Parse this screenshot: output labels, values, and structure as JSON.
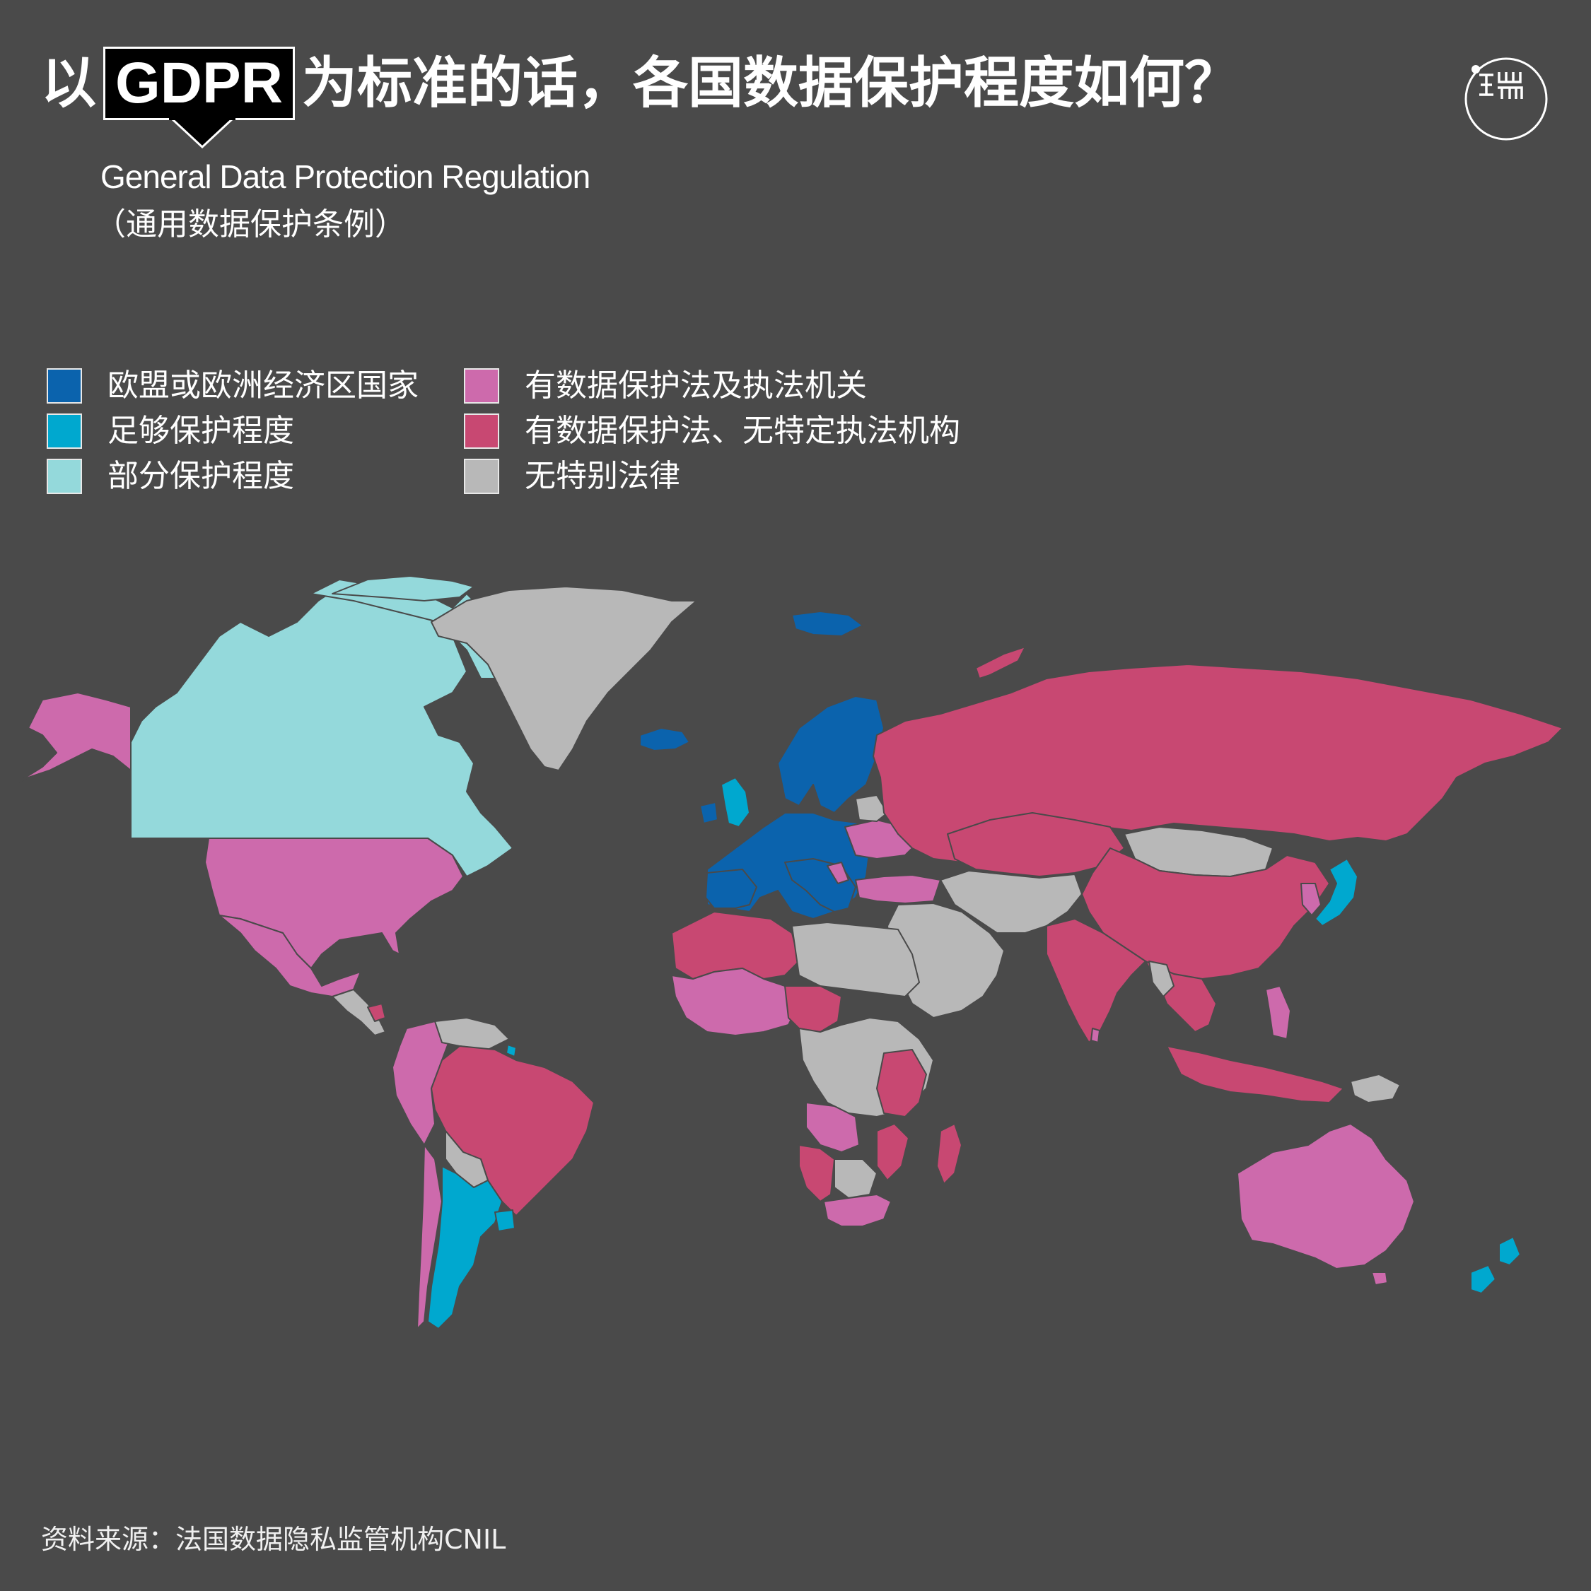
{
  "title": {
    "prefix": "以",
    "highlight": "GDPR",
    "suffix": "为标准的话，各国数据保护程度如何？"
  },
  "subtitle": {
    "english": "General Data Protection Regulation",
    "chinese": "（通用数据保护条例）"
  },
  "logo": {
    "icon": "thepaper-logo-icon"
  },
  "legend": [
    {
      "label": "欧盟或欧洲经济区国家",
      "color": "#0b63ad"
    },
    {
      "label": "有数据保护法及执法机关",
      "color": "#cd6aac"
    },
    {
      "label": "足够保护程度",
      "color": "#00a8cf"
    },
    {
      "label": "有数据保护法、无特定执法机构",
      "color": "#c84872"
    },
    {
      "label": "部分保护程度",
      "color": "#94d9db"
    },
    {
      "label": "无特别法律",
      "color": "#b8b8b8"
    }
  ],
  "colors": {
    "background": "#4a4a4a",
    "eu": "#0b63ad",
    "adequate": "#00a8cf",
    "partial": "#94d9db",
    "law_with_authority": "#cd6aac",
    "law_no_authority": "#c84872",
    "no_law": "#b8b8b8"
  },
  "source": "资料来源：法国数据隐私监管机构CNIL"
}
